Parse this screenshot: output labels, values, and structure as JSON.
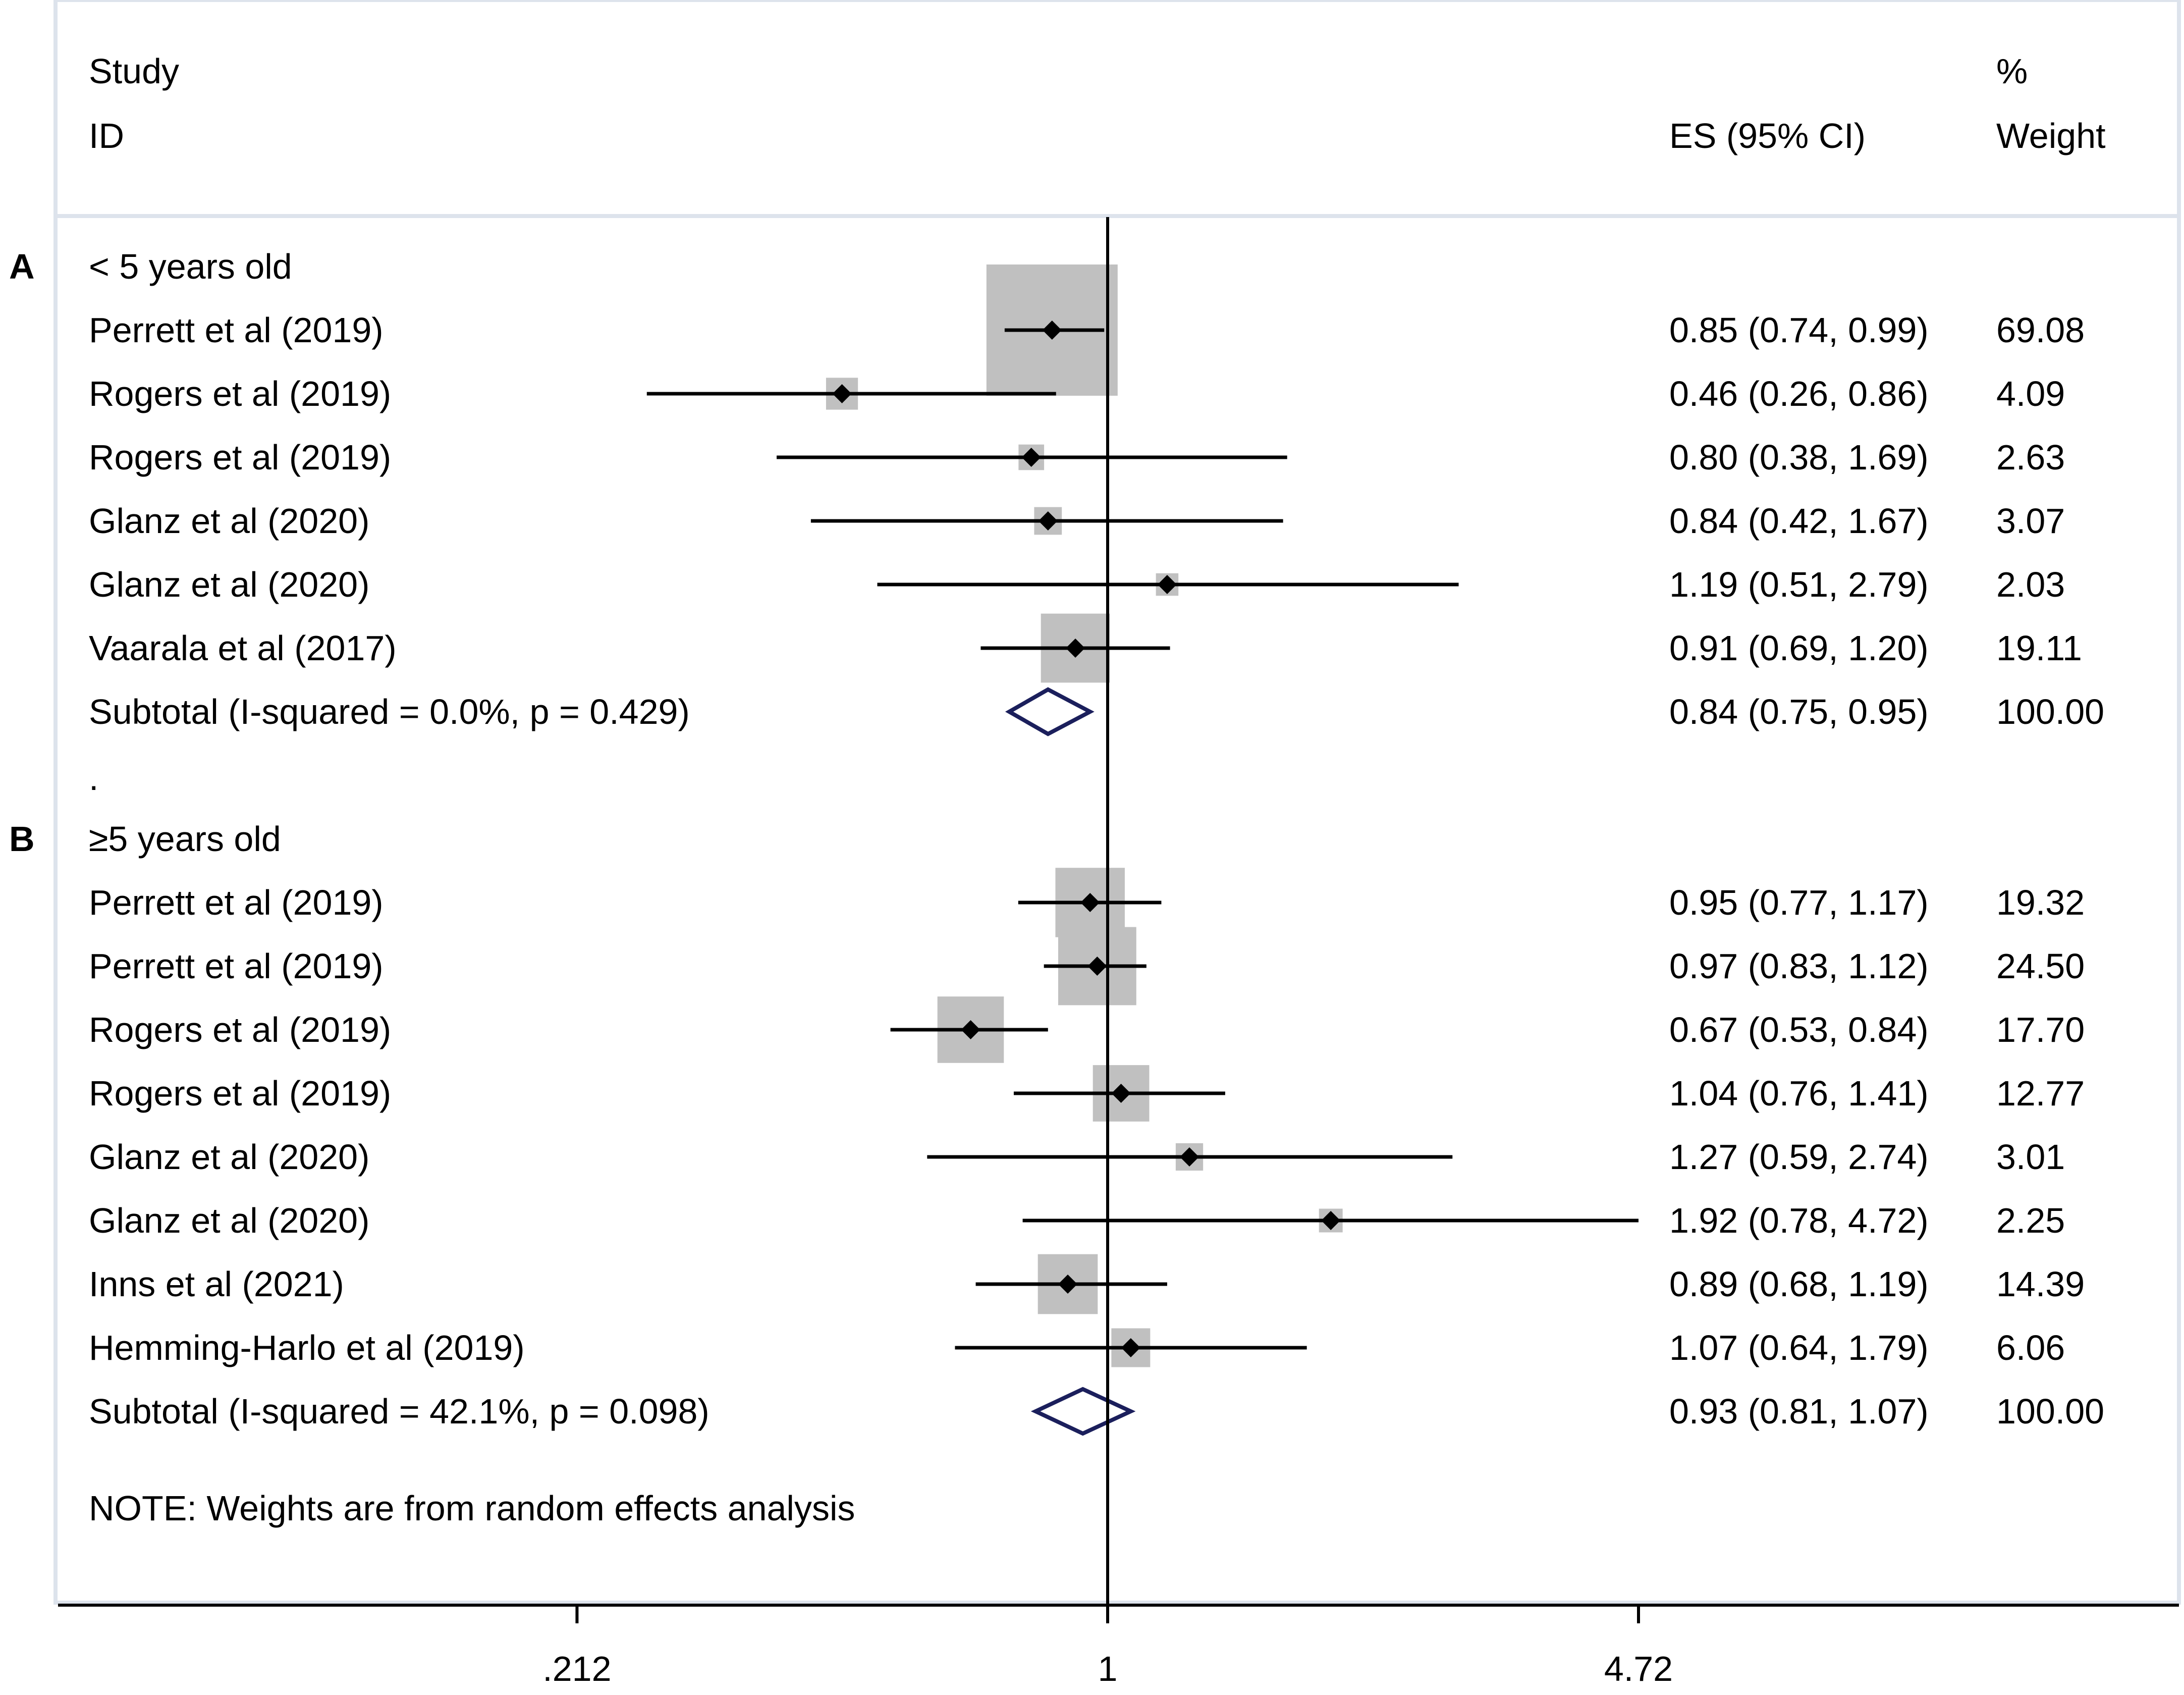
{
  "chart_data": {
    "type": "forest",
    "header": {
      "study": "Study",
      "id": "ID",
      "es": "ES (95% CI)",
      "pct": "%",
      "weight": "Weight"
    },
    "x_scale": "log",
    "null_value": 1,
    "xlim": [
      0.212,
      4.72
    ],
    "x_ticks": [
      {
        "value": 0.212,
        "label": ".212"
      },
      {
        "value": 1,
        "label": "1"
      },
      {
        "value": 4.72,
        "label": "4.72"
      }
    ],
    "groups": [
      {
        "panel_label": "A",
        "title": "< 5 years old",
        "studies": [
          {
            "name": "Perrett et al (2019)",
            "es": 0.85,
            "lo": 0.74,
            "hi": 0.99,
            "ci_text": "0.85 (0.74, 0.99)",
            "weight": 69.08,
            "weight_text": "69.08"
          },
          {
            "name": "Rogers et al (2019)",
            "es": 0.46,
            "lo": 0.26,
            "hi": 0.86,
            "ci_text": "0.46 (0.26, 0.86)",
            "weight": 4.09,
            "weight_text": "4.09"
          },
          {
            "name": "Rogers et al (2019)",
            "es": 0.8,
            "lo": 0.38,
            "hi": 1.69,
            "ci_text": "0.80 (0.38, 1.69)",
            "weight": 2.63,
            "weight_text": "2.63"
          },
          {
            "name": "Glanz et al (2020)",
            "es": 0.84,
            "lo": 0.42,
            "hi": 1.67,
            "ci_text": "0.84 (0.42, 1.67)",
            "weight": 3.07,
            "weight_text": "3.07"
          },
          {
            "name": "Glanz et al (2020)",
            "es": 1.19,
            "lo": 0.51,
            "hi": 2.79,
            "ci_text": "1.19 (0.51, 2.79)",
            "weight": 2.03,
            "weight_text": "2.03"
          },
          {
            "name": "Vaarala et al (2017)",
            "es": 0.91,
            "lo": 0.69,
            "hi": 1.2,
            "ci_text": "0.91 (0.69, 1.20)",
            "weight": 19.11,
            "weight_text": "19.11"
          }
        ],
        "subtotal": {
          "label": "Subtotal  (I-squared = 0.0%, p = 0.429)",
          "es": 0.84,
          "lo": 0.75,
          "hi": 0.95,
          "ci_text": "0.84 (0.75, 0.95)",
          "weight_text": "100.00"
        }
      },
      {
        "panel_label": "B",
        "title": "≥5 years old",
        "studies": [
          {
            "name": "Perrett et al (2019)",
            "es": 0.95,
            "lo": 0.77,
            "hi": 1.17,
            "ci_text": "0.95 (0.77, 1.17)",
            "weight": 19.32,
            "weight_text": "19.32"
          },
          {
            "name": "Perrett et al (2019)",
            "es": 0.97,
            "lo": 0.83,
            "hi": 1.12,
            "ci_text": "0.97 (0.83, 1.12)",
            "weight": 24.5,
            "weight_text": "24.50"
          },
          {
            "name": "Rogers et al (2019)",
            "es": 0.67,
            "lo": 0.53,
            "hi": 0.84,
            "ci_text": "0.67 (0.53, 0.84)",
            "weight": 17.7,
            "weight_text": "17.70"
          },
          {
            "name": "Rogers et al (2019)",
            "es": 1.04,
            "lo": 0.76,
            "hi": 1.41,
            "ci_text": "1.04 (0.76, 1.41)",
            "weight": 12.77,
            "weight_text": "12.77"
          },
          {
            "name": "Glanz et al (2020)",
            "es": 1.27,
            "lo": 0.59,
            "hi": 2.74,
            "ci_text": "1.27 (0.59, 2.74)",
            "weight": 3.01,
            "weight_text": "3.01"
          },
          {
            "name": "Glanz et al (2020)",
            "es": 1.92,
            "lo": 0.78,
            "hi": 4.72,
            "ci_text": "1.92 (0.78, 4.72)",
            "weight": 2.25,
            "weight_text": "2.25"
          },
          {
            "name": "Inns et al  (2021)",
            "es": 0.89,
            "lo": 0.68,
            "hi": 1.19,
            "ci_text": "0.89 (0.68, 1.19)",
            "weight": 14.39,
            "weight_text": "14.39"
          },
          {
            "name": "Hemming-Harlo et al (2019)",
            "es": 1.07,
            "lo": 0.64,
            "hi": 1.79,
            "ci_text": "1.07 (0.64, 1.79)",
            "weight": 6.06,
            "weight_text": "6.06"
          }
        ],
        "subtotal": {
          "label": "Subtotal  (I-squared = 42.1%, p = 0.098)",
          "es": 0.93,
          "lo": 0.81,
          "hi": 1.07,
          "ci_text": "0.93 (0.81, 1.07)",
          "weight_text": "100.00"
        }
      }
    ],
    "separator": ".",
    "note": "NOTE: Weights are from random effects analysis",
    "colors": {
      "box": "#c0c0c0",
      "diamond": "#1b1f5c",
      "line": "#000000",
      "frame": "#dde3ec"
    }
  }
}
